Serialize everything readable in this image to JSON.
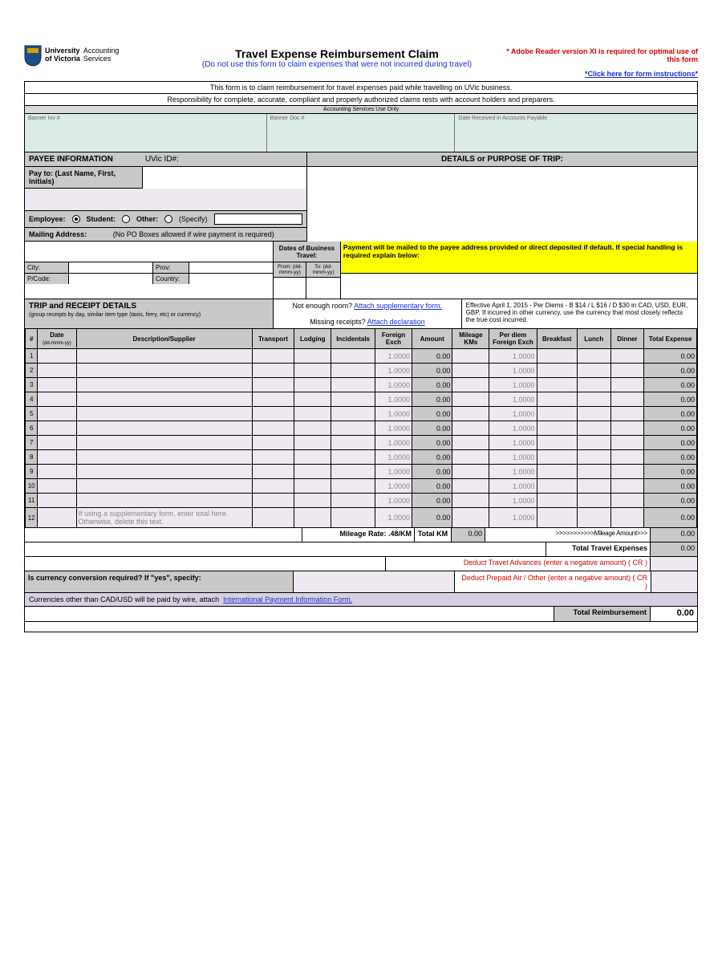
{
  "logo": {
    "line1": "University",
    "line2": "of Victoria",
    "dept1": "Accounting",
    "dept2": "Services"
  },
  "header": {
    "title": "Travel Expense Reimbursement Claim",
    "subtitle": "(Do not use this form to claim expenses that were not incurred during travel)",
    "req": "* Adobe Reader version XI is required for optimal use of this form",
    "link": "*Click here for form instructions*"
  },
  "intro1": "This form is to claim reimbursement for travel expenses paid while travelling on UVic business.",
  "intro2": "Responsibility for complete, accurate, compliant and properly authorized claims rests with account holders and preparers.",
  "svcOnly": "Accounting Services Use Only",
  "svc": {
    "a": "Banner Inv #",
    "b": "Banner Doc #",
    "c": "Date Received in Accounts Payable"
  },
  "payee": {
    "hdr": "PAYEE INFORMATION",
    "uvic": "UVic ID#:",
    "details": "DETAILS or PURPOSE OF TRIP:",
    "payto": "Pay to:  (Last Name, First, Initials)"
  },
  "emp": {
    "employee": "Employee:",
    "student": "Student:",
    "other": "Other:",
    "specify": "(Specify)"
  },
  "mail": {
    "lbl": "Mailing Address:",
    "note": "(No PO Boxes allowed if wire payment is required)"
  },
  "dates": {
    "hdr": "Dates of Business Travel:",
    "from": "From: (dd-mmm-yy)",
    "to": "To: (dd-mmm-yy)"
  },
  "addr": {
    "city": "City:",
    "prov": "Prov:",
    "pcode": "P/Code:",
    "country": "Country:"
  },
  "yellow": "Payment will be mailed to the payee address provided or direct deposited if default. If special handling is required explain below:",
  "trip": {
    "title": "TRIP and RECEIPT DETAILS",
    "sub": "(group receipts by day, similar item type (taxis, ferry, etc) or currency)",
    "ner": "Not enough room?",
    "nerLink": "Attach supplementary form.",
    "mr": "Missing receipts?",
    "mrLink": "Attach declaration",
    "eff": "Effective April 1, 2015 - Per Diems - B $14 / L $16 / D $30 in CAD, USD, EUR, GBP. If incurred in other currency, use the currency that most closely reflects the true cost incurred."
  },
  "cols": {
    "num": "#",
    "date": "Date",
    "dateSub": "(dd-mmm-yy)",
    "desc": "Description/Supplier",
    "transport": "Transport",
    "lodging": "Lodging",
    "incid": "Incidentals",
    "fexch": "Foreign Exch",
    "amount": "Amount",
    "mkm": "Mileage KMs",
    "pdfe": "Per diem Foreign Exch",
    "bkfst": "Breakfast",
    "lunch": "Lunch",
    "dinner": "Dinner",
    "total": "Total Expense"
  },
  "rows": [
    {
      "n": "1",
      "fe": "1.0000",
      "amt": "0.00",
      "pdfe": "1.0000",
      "tot": "0.00"
    },
    {
      "n": "2",
      "fe": "1.0000",
      "amt": "0.00",
      "pdfe": "1.0000",
      "tot": "0.00"
    },
    {
      "n": "3",
      "fe": "1.0000",
      "amt": "0.00",
      "pdfe": "1.0000",
      "tot": "0.00"
    },
    {
      "n": "4",
      "fe": "1.0000",
      "amt": "0.00",
      "pdfe": "1.0000",
      "tot": "0.00"
    },
    {
      "n": "5",
      "fe": "1.0000",
      "amt": "0.00",
      "pdfe": "1.0000",
      "tot": "0.00"
    },
    {
      "n": "6",
      "fe": "1.0000",
      "amt": "0.00",
      "pdfe": "1.0000",
      "tot": "0.00"
    },
    {
      "n": "7",
      "fe": "1.0000",
      "amt": "0.00",
      "pdfe": "1.0000",
      "tot": "0.00"
    },
    {
      "n": "8",
      "fe": "1.0000",
      "amt": "0.00",
      "pdfe": "1.0000",
      "tot": "0.00"
    },
    {
      "n": "9",
      "fe": "1.0000",
      "amt": "0.00",
      "pdfe": "1.0000",
      "tot": "0.00"
    },
    {
      "n": "10",
      "fe": "1.0000",
      "amt": "0.00",
      "pdfe": "1.0000",
      "tot": "0.00"
    },
    {
      "n": "11",
      "fe": "1.0000",
      "amt": "0.00",
      "pdfe": "1.0000",
      "tot": "0.00"
    },
    {
      "n": "12",
      "desc": "If using a supplementary form, enter total here. Otherwise, delete this text.",
      "fe": "1.0000",
      "amt": "0.00",
      "pdfe": "1.0000",
      "tot": "0.00"
    }
  ],
  "foot": {
    "mileageRate": "Mileage Rate: .48/KM",
    "totalKM": "Total KM",
    "totalKMv": "0.00",
    "mAmt": ">>>>>>>>>>>Mileage Amount>>>",
    "mAmtv": "0.00",
    "tte": "Total Travel Expenses",
    "ttev": "0.00",
    "dta": "Deduct Travel Advances (enter a negative amount)",
    "cr": "( CR )",
    "dpa": "Deduct Prepaid Air / Other (enter a negative amount)",
    "conv": "Is currency conversion required? If \"yes\", specify:",
    "curr": "Currencies other than CAD/USD will be paid by wire, attach",
    "currLink": "International Payment Information Form.",
    "totr": "Total Reimbursement",
    "totrv": "0.00"
  },
  "style": {
    "gray": "#c9c9c9",
    "teal": "#dceae8",
    "lpurple": "#eee8f0",
    "dpurple": "#d8cfe2",
    "yellow": "#ffff00",
    "blue": "#1a2fd6",
    "red": "#d60000"
  }
}
